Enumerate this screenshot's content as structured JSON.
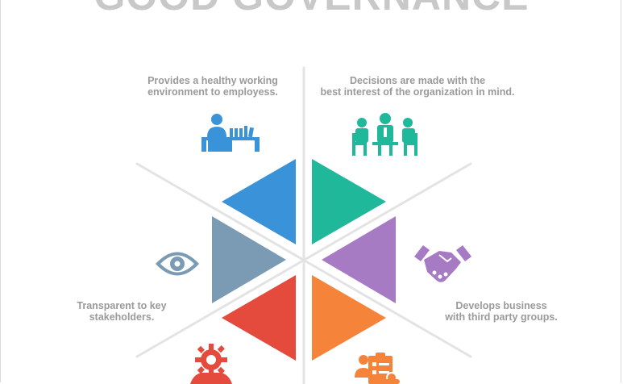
{
  "title": "GOOD GOVERNANCE",
  "captions": {
    "top_left": [
      "Provides a healthy working",
      "environment to employess."
    ],
    "top_right": [
      "Decisions are made with the",
      "best interest of the organization in mind."
    ],
    "right": [
      "Develops business",
      "with third party groups."
    ],
    "left": [
      "Transparent to key",
      "stakeholders."
    ]
  },
  "colors": {
    "blue": "#3a93d9",
    "teal": "#1fb89a",
    "purple": "#a77bc4",
    "orange": "#f5843a",
    "red": "#e54b3c",
    "slate": "#7a9bb3",
    "line": "#e3e3e3",
    "caption": "#9a9a9a",
    "title": "#c8c8c8"
  },
  "icons": {
    "top_left": "office-desk-icon",
    "top_right": "meeting-icon",
    "right": "handshake-icon",
    "left": "eye-icon",
    "bottom_left": "gear-person-icon",
    "bottom_right": "checklist-person-icon"
  }
}
